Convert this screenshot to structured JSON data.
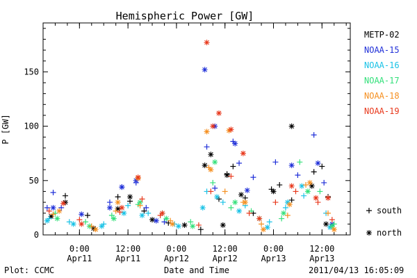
{
  "chart_data": {
    "type": "scatter",
    "title": "Hemispheric Power [GW]",
    "ylabel": "P [GW]",
    "xlabel": "Date and Time",
    "ylim": [
      0,
      195
    ],
    "xlim": [
      "2011-04-10T15:00",
      "2011-04-13T19:00"
    ],
    "yticks": [
      0,
      50,
      100,
      150
    ],
    "xticks": [
      {
        "time": "2011-04-11T00:00",
        "label": "0:00",
        "sublabel": "Apr11"
      },
      {
        "time": "2011-04-11T12:00",
        "label": "12:00",
        "sublabel": "Apr11"
      },
      {
        "time": "2011-04-12T00:00",
        "label": "0:00",
        "sublabel": "Apr12"
      },
      {
        "time": "2011-04-12T12:00",
        "label": "12:00",
        "sublabel": "Apr12"
      },
      {
        "time": "2011-04-13T00:00",
        "label": "0:00",
        "sublabel": "Apr13"
      },
      {
        "time": "2011-04-13T12:00",
        "label": "12:00",
        "sublabel": "Apr13"
      }
    ],
    "grid": false,
    "legend_position": "right",
    "marker_legend": [
      {
        "symbol": "+",
        "label": "south"
      },
      {
        "symbol": "*",
        "label": "north"
      }
    ],
    "series": [
      {
        "name": "METP-02",
        "color": "#000000",
        "south": [
          [
            "2011-04-10T20:30",
            36
          ],
          [
            "2011-04-11T02:00",
            18
          ],
          [
            "2011-04-11T09:30",
            35
          ],
          [
            "2011-04-11T12:30",
            31
          ],
          [
            "2011-04-11T16:00",
            22
          ],
          [
            "2011-04-11T22:00",
            11
          ],
          [
            "2011-04-12T06:00",
            5
          ],
          [
            "2011-04-12T10:30",
            33
          ],
          [
            "2011-04-12T12:30",
            56
          ],
          [
            "2011-04-12T14:00",
            63
          ],
          [
            "2011-04-12T17:00",
            34
          ],
          [
            "2011-04-12T19:00",
            20
          ],
          [
            "2011-04-12T23:30",
            42
          ],
          [
            "2011-04-13T01:30",
            46
          ],
          [
            "2011-04-13T04:30",
            32
          ],
          [
            "2011-04-13T10:00",
            58
          ],
          [
            "2011-04-13T12:00",
            63
          ],
          [
            "2011-04-13T13:30",
            35
          ]
        ],
        "north": [
          [
            "2011-04-10T17:00",
            17
          ],
          [
            "2011-04-10T20:30",
            30
          ],
          [
            "2011-04-11T03:30",
            6
          ],
          [
            "2011-04-11T09:30",
            24
          ],
          [
            "2011-04-11T12:30",
            35
          ],
          [
            "2011-04-11T18:00",
            14
          ],
          [
            "2011-04-12T02:00",
            9
          ],
          [
            "2011-04-12T07:00",
            64
          ],
          [
            "2011-04-12T08:30",
            74
          ],
          [
            "2011-04-12T11:30",
            9
          ],
          [
            "2011-04-12T12:30",
            55
          ],
          [
            "2011-04-12T16:00",
            37
          ],
          [
            "2011-04-13T00:00",
            40
          ],
          [
            "2011-04-13T04:30",
            100
          ],
          [
            "2011-04-13T09:30",
            45
          ],
          [
            "2011-04-13T13:00",
            10
          ]
        ]
      },
      {
        "name": "NOAA-15",
        "color": "#1f2fd8",
        "south": [
          [
            "2011-04-10T16:00",
            25
          ],
          [
            "2011-04-10T17:30",
            39
          ],
          [
            "2011-04-10T19:30",
            25
          ],
          [
            "2011-04-11T07:30",
            30
          ],
          [
            "2011-04-11T10:30",
            44
          ],
          [
            "2011-04-11T14:00",
            48
          ],
          [
            "2011-04-11T16:30",
            25
          ],
          [
            "2011-04-11T21:00",
            12
          ],
          [
            "2011-04-12T07:30",
            81
          ],
          [
            "2011-04-12T09:30",
            43
          ],
          [
            "2011-04-12T14:00",
            86
          ],
          [
            "2011-04-12T15:30",
            66
          ],
          [
            "2011-04-12T19:00",
            53
          ],
          [
            "2011-04-13T00:30",
            67
          ],
          [
            "2011-04-13T06:00",
            55
          ],
          [
            "2011-04-13T10:00",
            92
          ],
          [
            "2011-04-13T12:30",
            48
          ]
        ],
        "north": [
          [
            "2011-04-10T17:30",
            25
          ],
          [
            "2011-04-11T00:30",
            19
          ],
          [
            "2011-04-11T07:30",
            25
          ],
          [
            "2011-04-11T10:30",
            44
          ],
          [
            "2011-04-11T14:00",
            50
          ],
          [
            "2011-04-11T19:00",
            13
          ],
          [
            "2011-04-12T07:00",
            152
          ],
          [
            "2011-04-12T09:30",
            100
          ],
          [
            "2011-04-12T14:30",
            84
          ],
          [
            "2011-04-12T17:30",
            41
          ],
          [
            "2011-04-13T04:30",
            64
          ],
          [
            "2011-04-13T11:00",
            66
          ],
          [
            "2011-04-13T14:30",
            10
          ]
        ]
      },
      {
        "name": "NOAA-16",
        "color": "#19c2e6",
        "south": [
          [
            "2011-04-10T16:30",
            15
          ],
          [
            "2011-04-10T21:30",
            12
          ],
          [
            "2011-04-11T06:00",
            10
          ],
          [
            "2011-04-11T12:00",
            27
          ],
          [
            "2011-04-11T17:00",
            20
          ],
          [
            "2011-04-11T23:30",
            10
          ],
          [
            "2011-04-12T07:30",
            40
          ],
          [
            "2011-04-12T11:30",
            30
          ],
          [
            "2011-04-12T17:00",
            27
          ],
          [
            "2011-04-12T23:00",
            12
          ],
          [
            "2011-04-13T03:00",
            25
          ],
          [
            "2011-04-13T07:30",
            36
          ],
          [
            "2011-04-13T13:00",
            20
          ]
        ],
        "north": [
          [
            "2011-04-10T16:00",
            13
          ],
          [
            "2011-04-10T22:30",
            10
          ],
          [
            "2011-04-11T05:30",
            8
          ],
          [
            "2011-04-11T11:00",
            20
          ],
          [
            "2011-04-11T15:30",
            18
          ],
          [
            "2011-04-12T00:30",
            8
          ],
          [
            "2011-04-12T06:30",
            25
          ],
          [
            "2011-04-12T10:00",
            35
          ],
          [
            "2011-04-12T15:30",
            22
          ],
          [
            "2011-04-12T22:30",
            7
          ],
          [
            "2011-04-13T03:30",
            30
          ],
          [
            "2011-04-13T07:00",
            45
          ],
          [
            "2011-04-13T14:00",
            7
          ]
        ]
      },
      {
        "name": "NOAA-17",
        "color": "#33e07a",
        "south": [
          [
            "2011-04-10T18:00",
            20
          ],
          [
            "2011-04-11T01:30",
            12
          ],
          [
            "2011-04-11T08:00",
            18
          ],
          [
            "2011-04-11T14:30",
            28
          ],
          [
            "2011-04-11T20:30",
            20
          ],
          [
            "2011-04-12T03:30",
            12
          ],
          [
            "2011-04-12T09:00",
            48
          ],
          [
            "2011-04-12T13:30",
            25
          ],
          [
            "2011-04-12T18:30",
            22
          ],
          [
            "2011-04-13T02:00",
            15
          ],
          [
            "2011-04-13T06:30",
            67
          ],
          [
            "2011-04-13T11:30",
            40
          ],
          [
            "2011-04-13T15:00",
            10
          ]
        ],
        "north": [
          [
            "2011-04-10T18:30",
            15
          ],
          [
            "2011-04-11T02:30",
            8
          ],
          [
            "2011-04-11T08:30",
            15
          ],
          [
            "2011-04-11T15:00",
            30
          ],
          [
            "2011-04-11T21:30",
            15
          ],
          [
            "2011-04-12T04:00",
            8
          ],
          [
            "2011-04-12T09:30",
            67
          ],
          [
            "2011-04-12T14:30",
            30
          ],
          [
            "2011-04-12T20:30",
            15
          ],
          [
            "2011-04-13T02:30",
            20
          ],
          [
            "2011-04-13T08:30",
            40
          ],
          [
            "2011-04-13T14:30",
            8
          ]
        ]
      },
      {
        "name": "NOAA-18",
        "color": "#f58f1f",
        "south": [
          [
            "2011-04-10T17:30",
            19
          ],
          [
            "2011-04-11T03:00",
            8
          ],
          [
            "2011-04-11T09:00",
            22
          ],
          [
            "2011-04-11T15:00",
            27
          ],
          [
            "2011-04-11T22:30",
            13
          ],
          [
            "2011-04-12T08:00",
            62
          ],
          [
            "2011-04-12T12:00",
            40
          ],
          [
            "2011-04-12T16:30",
            30
          ],
          [
            "2011-04-12T21:00",
            10
          ],
          [
            "2011-04-13T03:30",
            18
          ],
          [
            "2011-04-13T08:00",
            46
          ],
          [
            "2011-04-13T13:30",
            20
          ]
        ],
        "north": [
          [
            "2011-04-10T19:00",
            22
          ],
          [
            "2011-04-11T04:00",
            5
          ],
          [
            "2011-04-11T09:30",
            30
          ],
          [
            "2011-04-11T14:30",
            52
          ],
          [
            "2011-04-11T23:00",
            10
          ],
          [
            "2011-04-12T07:30",
            95
          ],
          [
            "2011-04-12T08:30",
            60
          ],
          [
            "2011-04-12T13:00",
            96
          ],
          [
            "2011-04-12T17:00",
            30
          ],
          [
            "2011-04-12T21:30",
            5
          ],
          [
            "2011-04-13T04:00",
            28
          ],
          [
            "2011-04-13T09:00",
            48
          ],
          [
            "2011-04-13T15:00",
            5
          ]
        ]
      },
      {
        "name": "NOAA-19",
        "color": "#e8381c",
        "south": [
          [
            "2011-04-10T16:30",
            22
          ],
          [
            "2011-04-11T00:00",
            14
          ],
          [
            "2011-04-11T10:00",
            21
          ],
          [
            "2011-04-11T15:30",
            33
          ],
          [
            "2011-04-11T20:00",
            18
          ],
          [
            "2011-04-12T05:30",
            9
          ],
          [
            "2011-04-12T08:30",
            40
          ],
          [
            "2011-04-12T13:30",
            54
          ],
          [
            "2011-04-12T18:00",
            20
          ],
          [
            "2011-04-13T00:30",
            30
          ],
          [
            "2011-04-13T05:30",
            40
          ],
          [
            "2011-04-13T11:00",
            30
          ],
          [
            "2011-04-13T14:30",
            14
          ]
        ],
        "north": [
          [
            "2011-04-10T20:00",
            29
          ],
          [
            "2011-04-11T00:30",
            10
          ],
          [
            "2011-04-11T10:30",
            25
          ],
          [
            "2011-04-11T14:30",
            53
          ],
          [
            "2011-04-11T20:30",
            20
          ],
          [
            "2011-04-12T07:30",
            177
          ],
          [
            "2011-04-12T09:00",
            100
          ],
          [
            "2011-04-12T10:30",
            112
          ],
          [
            "2011-04-12T13:30",
            97
          ],
          [
            "2011-04-12T16:30",
            75
          ],
          [
            "2011-04-12T20:30",
            15
          ],
          [
            "2011-04-13T04:30",
            45
          ],
          [
            "2011-04-13T10:30",
            34
          ],
          [
            "2011-04-13T13:30",
            34
          ]
        ]
      }
    ]
  },
  "footer": {
    "plot_credit": "Plot: CCMC",
    "timestamp": "2011/04/13 16:05:09"
  }
}
